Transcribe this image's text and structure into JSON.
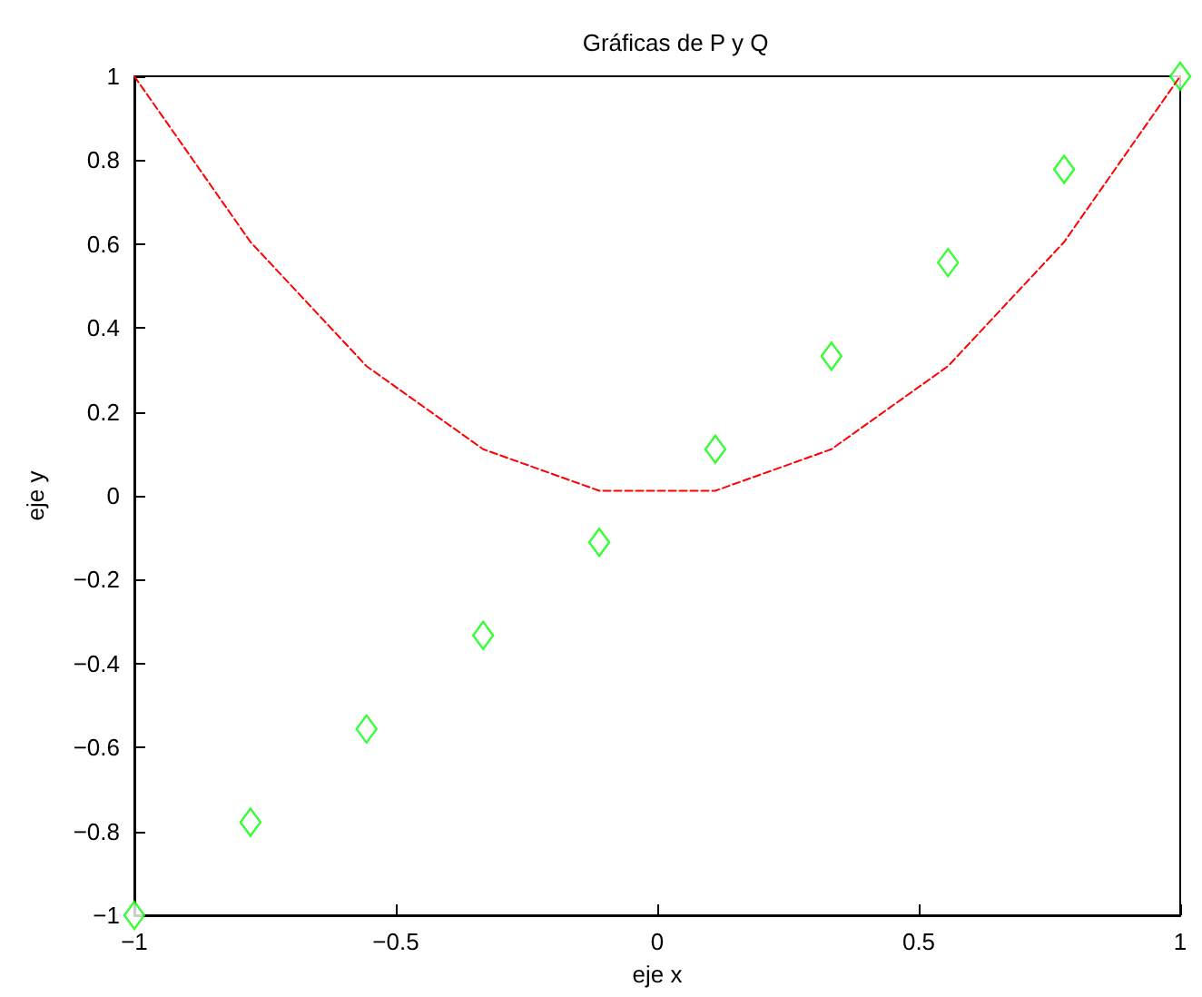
{
  "chart_data": {
    "type": "line",
    "title": "Gráficas de P y Q",
    "xlabel": "eje x",
    "ylabel": "eje y",
    "x": [
      -1,
      -0.778,
      -0.556,
      -0.333,
      -0.111,
      0.111,
      0.333,
      0.556,
      0.778,
      1
    ],
    "series": [
      {
        "color": "#ff0000",
        "line_style": "dashed",
        "marker": "none",
        "values": [
          1,
          0.605,
          0.309,
          0.111,
          0.012,
          0.012,
          0.111,
          0.309,
          0.605,
          1
        ]
      },
      {
        "type": "scatter",
        "color": "#00ff00",
        "marker": "diamond",
        "values": [
          -1,
          -0.778,
          -0.556,
          -0.333,
          -0.111,
          0.111,
          0.333,
          0.556,
          0.778,
          1
        ]
      }
    ],
    "xlim": [
      -1,
      1
    ],
    "ylim": [
      -1,
      1
    ],
    "xticks": [
      {
        "value": -1,
        "label": "−1"
      },
      {
        "value": -0.5,
        "label": "−0.5"
      },
      0,
      0.5,
      1
    ],
    "yticks": [
      {
        "value": -1,
        "label": "−1"
      },
      {
        "value": -0.8,
        "label": "−0.8"
      },
      {
        "value": -0.6,
        "label": "−0.6"
      },
      {
        "value": -0.4,
        "label": "−0.4"
      },
      {
        "value": -0.2,
        "label": "−0.2"
      },
      0,
      0.2,
      0.4,
      0.6,
      0.8,
      1
    ],
    "grid": false
  }
}
